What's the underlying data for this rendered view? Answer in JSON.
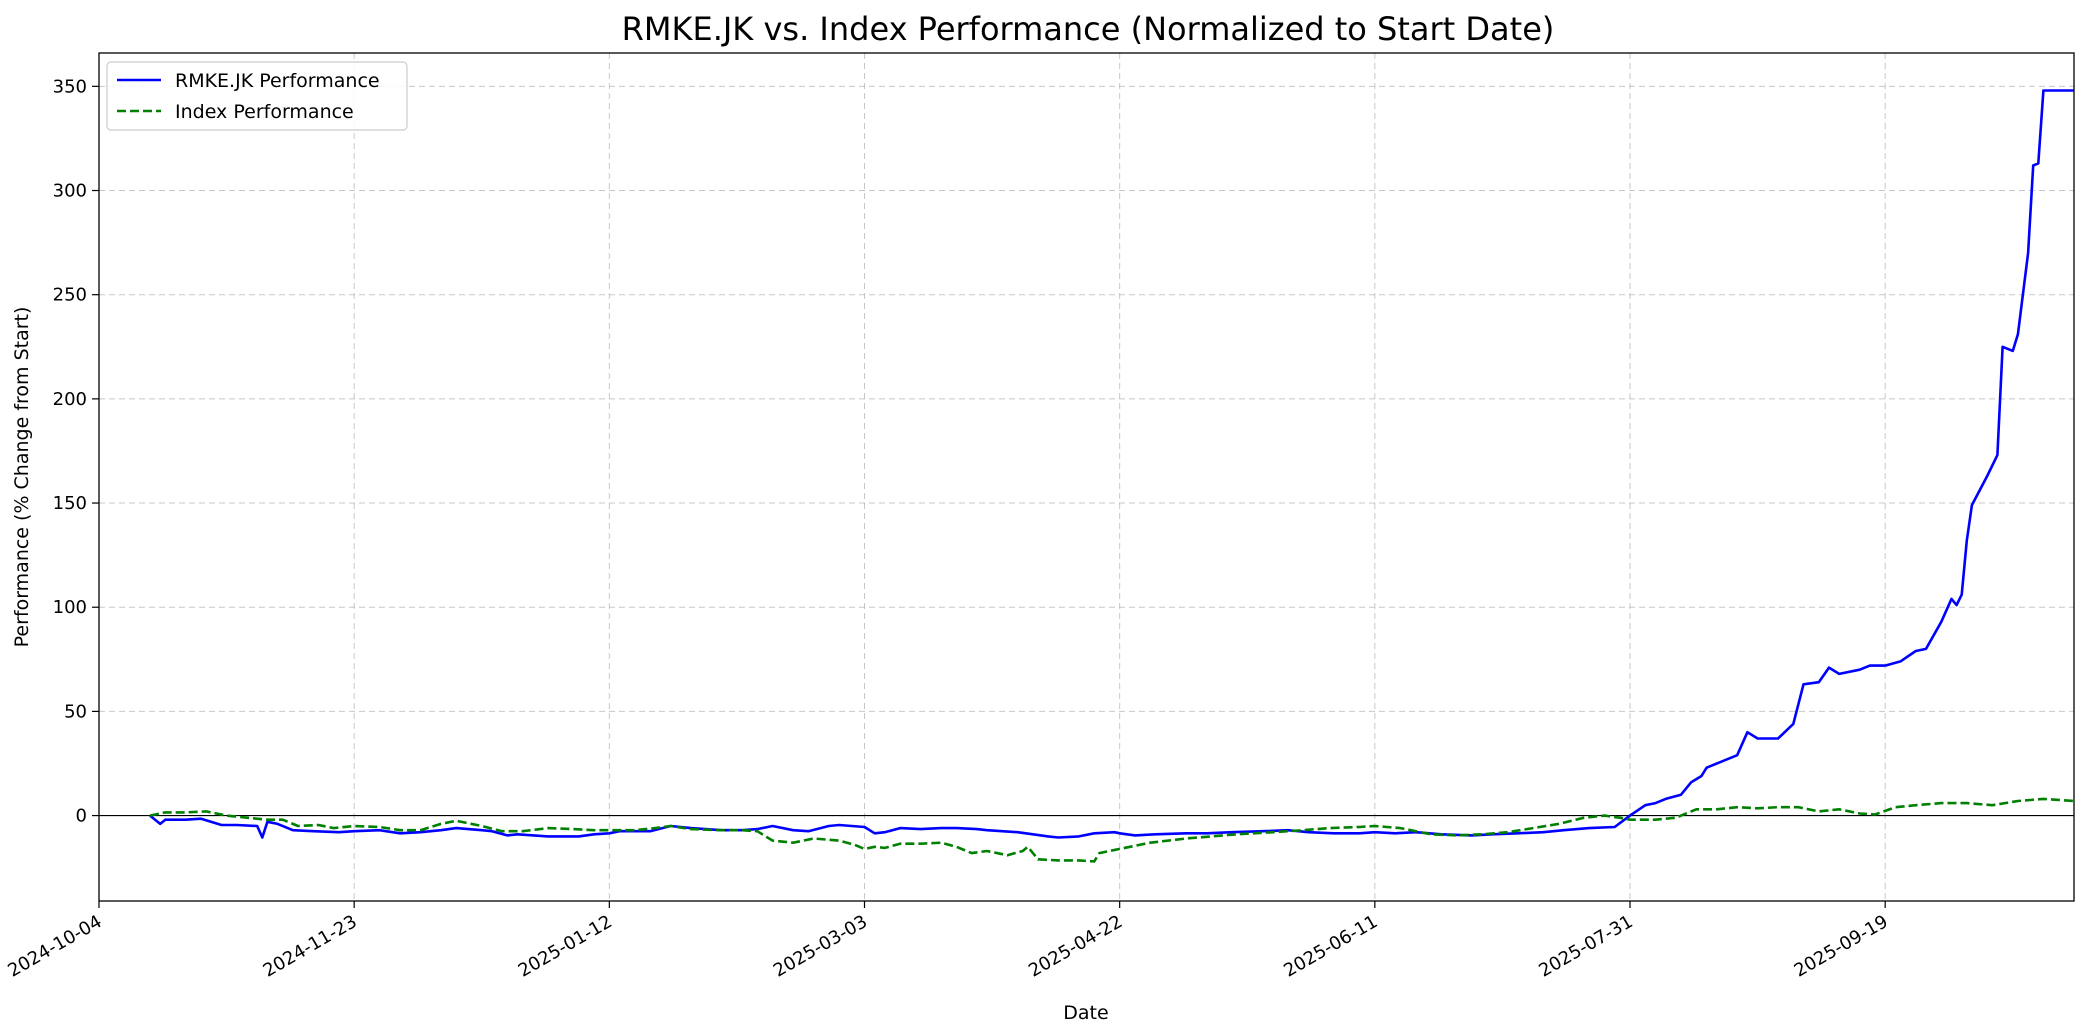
{
  "chart_data": {
    "type": "line",
    "title": "RMKE.JK vs. Index Performance (Normalized to Start Date)",
    "xlabel": "Date",
    "ylabel": "Performance (% Change from Start)",
    "xlim": [
      "2024-10-04",
      "2025-10-26"
    ],
    "ylim": [
      -41,
      366
    ],
    "x_ticks": [
      "2024-10-04",
      "2024-11-23",
      "2025-01-12",
      "2025-03-03",
      "2025-04-22",
      "2025-06-11",
      "2025-07-31",
      "2025-09-19"
    ],
    "y_ticks": [
      0,
      50,
      100,
      150,
      200,
      250,
      300,
      350
    ],
    "grid": true,
    "zero_line": true,
    "legend_position": "top-left",
    "series": [
      {
        "name": "RMKE.JK Performance",
        "color": "#0000ff",
        "style": "solid",
        "points": [
          [
            "2024-10-14",
            0
          ],
          [
            "2024-10-16",
            -4
          ],
          [
            "2024-10-17",
            -2
          ],
          [
            "2024-10-21",
            -2
          ],
          [
            "2024-10-24",
            -1.5
          ],
          [
            "2024-10-28",
            -4.5
          ],
          [
            "2024-10-31",
            -4.5
          ],
          [
            "2024-11-04",
            -5
          ],
          [
            "2024-11-05",
            -10.5
          ],
          [
            "2024-11-06",
            -3
          ],
          [
            "2024-11-08",
            -4
          ],
          [
            "2024-11-11",
            -7
          ],
          [
            "2024-11-15",
            -7.5
          ],
          [
            "2024-11-20",
            -8
          ],
          [
            "2024-11-23",
            -7.5
          ],
          [
            "2024-11-28",
            -7
          ],
          [
            "2024-12-02",
            -8.5
          ],
          [
            "2024-12-06",
            -8
          ],
          [
            "2024-12-10",
            -7
          ],
          [
            "2024-12-13",
            -6
          ],
          [
            "2024-12-18",
            -7
          ],
          [
            "2024-12-20",
            -7.5
          ],
          [
            "2024-12-23",
            -9.5
          ],
          [
            "2024-12-25",
            -9
          ],
          [
            "2024-12-31",
            -10
          ],
          [
            "2025-01-06",
            -10
          ],
          [
            "2025-01-09",
            -9
          ],
          [
            "2025-01-12",
            -8.5
          ],
          [
            "2025-01-14",
            -7.5
          ],
          [
            "2025-01-20",
            -7.5
          ],
          [
            "2025-01-24",
            -5
          ],
          [
            "2025-01-28",
            -6
          ],
          [
            "2025-02-03",
            -7
          ],
          [
            "2025-02-07",
            -7
          ],
          [
            "2025-02-10",
            -6.5
          ],
          [
            "2025-02-13",
            -5
          ],
          [
            "2025-02-17",
            -7
          ],
          [
            "2025-02-20",
            -7.5
          ],
          [
            "2025-02-24",
            -5
          ],
          [
            "2025-02-26",
            -4.5
          ],
          [
            "2025-03-03",
            -5.5
          ],
          [
            "2025-03-05",
            -8.5
          ],
          [
            "2025-03-07",
            -8
          ],
          [
            "2025-03-10",
            -6
          ],
          [
            "2025-03-14",
            -6.5
          ],
          [
            "2025-03-18",
            -6
          ],
          [
            "2025-03-21",
            -6
          ],
          [
            "2025-03-25",
            -6.5
          ],
          [
            "2025-03-27",
            -7
          ],
          [
            "2025-04-02",
            -8
          ],
          [
            "2025-04-08",
            -10
          ],
          [
            "2025-04-10",
            -10.5
          ],
          [
            "2025-04-14",
            -10
          ],
          [
            "2025-04-17",
            -8.5
          ],
          [
            "2025-04-21",
            -8
          ],
          [
            "2025-04-22",
            -8.5
          ],
          [
            "2025-04-25",
            -9.5
          ],
          [
            "2025-04-29",
            -9
          ],
          [
            "2025-05-05",
            -8.5
          ],
          [
            "2025-05-09",
            -8.5
          ],
          [
            "2025-05-14",
            -8
          ],
          [
            "2025-05-20",
            -7.5
          ],
          [
            "2025-05-25",
            -7
          ],
          [
            "2025-05-29",
            -8
          ],
          [
            "2025-06-03",
            -8.5
          ],
          [
            "2025-06-08",
            -8.5
          ],
          [
            "2025-06-11",
            -8
          ],
          [
            "2025-06-15",
            -8.5
          ],
          [
            "2025-06-19",
            -8
          ],
          [
            "2025-06-24",
            -9
          ],
          [
            "2025-06-30",
            -9.5
          ],
          [
            "2025-07-04",
            -9
          ],
          [
            "2025-07-09",
            -8.5
          ],
          [
            "2025-07-14",
            -8
          ],
          [
            "2025-07-18",
            -7
          ],
          [
            "2025-07-23",
            -6
          ],
          [
            "2025-07-28",
            -5.5
          ],
          [
            "2025-07-31",
            0
          ],
          [
            "2025-08-03",
            5
          ],
          [
            "2025-08-05",
            6
          ],
          [
            "2025-08-07",
            8
          ],
          [
            "2025-08-10",
            10
          ],
          [
            "2025-08-12",
            16
          ],
          [
            "2025-08-14",
            19
          ],
          [
            "2025-08-15",
            23
          ],
          [
            "2025-08-18",
            26
          ],
          [
            "2025-08-21",
            29
          ],
          [
            "2025-08-23",
            40
          ],
          [
            "2025-08-25",
            37
          ],
          [
            "2025-08-29",
            37
          ],
          [
            "2025-09-01",
            44
          ],
          [
            "2025-09-03",
            63
          ],
          [
            "2025-09-06",
            64
          ],
          [
            "2025-09-08",
            71
          ],
          [
            "2025-09-10",
            68
          ],
          [
            "2025-09-14",
            70
          ],
          [
            "2025-09-16",
            72
          ],
          [
            "2025-09-19",
            72
          ],
          [
            "2025-09-22",
            74
          ],
          [
            "2025-09-25",
            79
          ],
          [
            "2025-09-27",
            80
          ],
          [
            "2025-09-30",
            93
          ],
          [
            "2025-10-02",
            104
          ],
          [
            "2025-10-03",
            101
          ],
          [
            "2025-10-04",
            106
          ],
          [
            "2025-10-05",
            132
          ],
          [
            "2025-10-06",
            149
          ],
          [
            "2025-10-09",
            163
          ],
          [
            "2025-10-11",
            173
          ],
          [
            "2025-10-12",
            225
          ],
          [
            "2025-10-14",
            223
          ],
          [
            "2025-10-15",
            231
          ],
          [
            "2025-10-17",
            270
          ],
          [
            "2025-10-18",
            312
          ],
          [
            "2025-10-19",
            313
          ],
          [
            "2025-10-20",
            348
          ],
          [
            "2025-10-24",
            348
          ],
          [
            "2025-10-26",
            348
          ]
        ]
      },
      {
        "name": "Index Performance",
        "color": "#008000",
        "style": "dashed",
        "points": [
          [
            "2024-10-14",
            0
          ],
          [
            "2024-10-17",
            1.5
          ],
          [
            "2024-10-21",
            1.5
          ],
          [
            "2024-10-25",
            2
          ],
          [
            "2024-10-29",
            0
          ],
          [
            "2024-11-02",
            -1
          ],
          [
            "2024-11-06",
            -2
          ],
          [
            "2024-11-09",
            -2
          ],
          [
            "2024-11-12",
            -5
          ],
          [
            "2024-11-16",
            -4.5
          ],
          [
            "2024-11-19",
            -6
          ],
          [
            "2024-11-23",
            -5
          ],
          [
            "2024-11-28",
            -5.5
          ],
          [
            "2024-12-02",
            -7
          ],
          [
            "2024-12-06",
            -7
          ],
          [
            "2024-12-10",
            -4
          ],
          [
            "2024-12-13",
            -2.5
          ],
          [
            "2024-12-18",
            -5
          ],
          [
            "2024-12-22",
            -7.5
          ],
          [
            "2024-12-26",
            -7.5
          ],
          [
            "2024-12-31",
            -6
          ],
          [
            "2025-01-05",
            -6.5
          ],
          [
            "2025-01-09",
            -7
          ],
          [
            "2025-01-12",
            -7
          ],
          [
            "2025-01-17",
            -7
          ],
          [
            "2025-01-21",
            -6
          ],
          [
            "2025-01-24",
            -5
          ],
          [
            "2025-01-28",
            -6.5
          ],
          [
            "2025-02-03",
            -7
          ],
          [
            "2025-02-07",
            -7
          ],
          [
            "2025-02-10",
            -7.5
          ],
          [
            "2025-02-13",
            -12
          ],
          [
            "2025-02-17",
            -13
          ],
          [
            "2025-02-21",
            -11
          ],
          [
            "2025-02-26",
            -12
          ],
          [
            "2025-03-01",
            -14
          ],
          [
            "2025-03-03",
            -16
          ],
          [
            "2025-03-05",
            -15
          ],
          [
            "2025-03-07",
            -15.5
          ],
          [
            "2025-03-10",
            -13.5
          ],
          [
            "2025-03-14",
            -13.5
          ],
          [
            "2025-03-18",
            -13
          ],
          [
            "2025-03-21",
            -15
          ],
          [
            "2025-03-24",
            -18
          ],
          [
            "2025-03-27",
            -17
          ],
          [
            "2025-03-31",
            -19
          ],
          [
            "2025-04-03",
            -17
          ],
          [
            "2025-04-04",
            -15
          ],
          [
            "2025-04-06",
            -21
          ],
          [
            "2025-04-10",
            -21.5
          ],
          [
            "2025-04-14",
            -21.5
          ],
          [
            "2025-04-17",
            -22
          ],
          [
            "2025-04-18",
            -18
          ],
          [
            "2025-04-22",
            -16
          ],
          [
            "2025-04-28",
            -13
          ],
          [
            "2025-05-05",
            -11
          ],
          [
            "2025-05-10",
            -10
          ],
          [
            "2025-05-15",
            -9
          ],
          [
            "2025-05-22",
            -8
          ],
          [
            "2025-05-28",
            -7
          ],
          [
            "2025-06-02",
            -6
          ],
          [
            "2025-06-08",
            -5.5
          ],
          [
            "2025-06-11",
            -5
          ],
          [
            "2025-06-16",
            -6
          ],
          [
            "2025-06-22",
            -9
          ],
          [
            "2025-06-27",
            -9.5
          ],
          [
            "2025-07-02",
            -9
          ],
          [
            "2025-07-07",
            -8
          ],
          [
            "2025-07-12",
            -6
          ],
          [
            "2025-07-17",
            -4
          ],
          [
            "2025-07-22",
            -1
          ],
          [
            "2025-07-26",
            0
          ],
          [
            "2025-07-29",
            -1
          ],
          [
            "2025-07-31",
            -2
          ],
          [
            "2025-08-05",
            -2
          ],
          [
            "2025-08-09",
            -1
          ],
          [
            "2025-08-13",
            3
          ],
          [
            "2025-08-17",
            3
          ],
          [
            "2025-08-21",
            4
          ],
          [
            "2025-08-25",
            3.5
          ],
          [
            "2025-08-29",
            4
          ],
          [
            "2025-09-02",
            4
          ],
          [
            "2025-09-06",
            2
          ],
          [
            "2025-09-10",
            3
          ],
          [
            "2025-09-14",
            1
          ],
          [
            "2025-09-17",
            0.5
          ],
          [
            "2025-09-21",
            4
          ],
          [
            "2025-09-25",
            5
          ],
          [
            "2025-09-30",
            6
          ],
          [
            "2025-10-05",
            6
          ],
          [
            "2025-10-10",
            5
          ],
          [
            "2025-10-15",
            7
          ],
          [
            "2025-10-20",
            8
          ],
          [
            "2025-10-23",
            7.5
          ],
          [
            "2025-10-26",
            7
          ]
        ]
      }
    ]
  }
}
